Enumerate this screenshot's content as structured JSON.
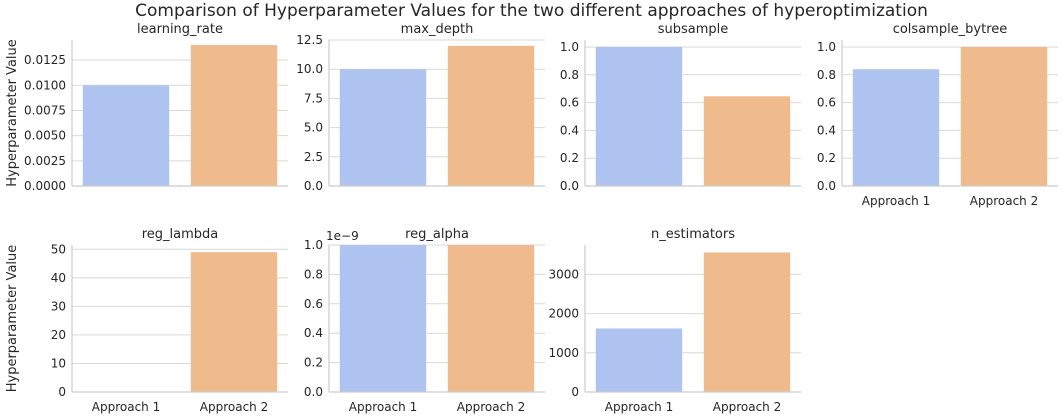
{
  "suptitle": "Comparison of Hyperparameter Values for the two different approaches of hyperoptimization",
  "colors": {
    "approach_1": "#aec3ef",
    "approach_2": "#f0bb8c",
    "grid": "#d9d9d9",
    "axis": "#cccccc",
    "text": "#262626"
  },
  "chart_data": [
    {
      "type": "bar",
      "title": "learning_rate",
      "ylabel": "Hyperparameter Value",
      "categories": [
        "Approach 1",
        "Approach 2"
      ],
      "values": [
        0.01,
        0.014
      ],
      "ylim": [
        0,
        0.0145
      ],
      "yticks": [
        0,
        0.0025,
        0.005,
        0.0075,
        0.01,
        0.0125
      ],
      "ytick_labels": [
        "0.0000",
        "0.0025",
        "0.0050",
        "0.0075",
        "0.0100",
        "0.0125"
      ],
      "show_xticks": false,
      "grid": true
    },
    {
      "type": "bar",
      "title": "max_depth",
      "ylabel": "",
      "categories": [
        "Approach 1",
        "Approach 2"
      ],
      "values": [
        10,
        12
      ],
      "ylim": [
        0,
        12.5
      ],
      "yticks": [
        0,
        2.5,
        5,
        7.5,
        10,
        12.5
      ],
      "ytick_labels": [
        "0.0",
        "2.5",
        "5.0",
        "7.5",
        "10.0",
        "12.5"
      ],
      "show_xticks": false,
      "grid": true
    },
    {
      "type": "bar",
      "title": "subsample",
      "ylabel": "",
      "categories": [
        "Approach 1",
        "Approach 2"
      ],
      "values": [
        1.0,
        0.645
      ],
      "ylim": [
        0,
        1.05
      ],
      "yticks": [
        0,
        0.2,
        0.4,
        0.6,
        0.8,
        1.0
      ],
      "ytick_labels": [
        "0.0",
        "0.2",
        "0.4",
        "0.6",
        "0.8",
        "1.0"
      ],
      "show_xticks": false,
      "grid": true
    },
    {
      "type": "bar",
      "title": "colsample_bytree",
      "ylabel": "",
      "categories": [
        "Approach 1",
        "Approach 2"
      ],
      "values": [
        0.84,
        1.0
      ],
      "ylim": [
        0,
        1.05
      ],
      "yticks": [
        0,
        0.2,
        0.4,
        0.6,
        0.8,
        1.0
      ],
      "ytick_labels": [
        "0.0",
        "0.2",
        "0.4",
        "0.6",
        "0.8",
        "1.0"
      ],
      "show_xticks": true,
      "grid": true
    },
    {
      "type": "bar",
      "title": "reg_lambda",
      "ylabel": "Hyperparameter Value",
      "categories": [
        "Approach 1",
        "Approach 2"
      ],
      "values": [
        0.0,
        49
      ],
      "ylim": [
        0,
        51.5
      ],
      "yticks": [
        0,
        10,
        20,
        30,
        40,
        50
      ],
      "ytick_labels": [
        "0",
        "10",
        "20",
        "30",
        "40",
        "50"
      ],
      "show_xticks": true,
      "grid": true
    },
    {
      "type": "bar",
      "title": "reg_alpha",
      "ylabel": "",
      "offset_label": "1e−9",
      "categories": [
        "Approach 1",
        "Approach 2"
      ],
      "values": [
        1.0,
        1.0
      ],
      "ylim": [
        0,
        1.0
      ],
      "yticks": [
        0,
        0.2,
        0.4,
        0.6,
        0.8,
        1.0
      ],
      "ytick_labels": [
        "0.0",
        "0.2",
        "0.4",
        "0.6",
        "0.8",
        "1.0"
      ],
      "show_xticks": true,
      "grid": true
    },
    {
      "type": "bar",
      "title": "n_estimators",
      "ylabel": "",
      "categories": [
        "Approach 1",
        "Approach 2"
      ],
      "values": [
        1620,
        3560
      ],
      "ylim": [
        0,
        3750
      ],
      "yticks": [
        0,
        1000,
        2000,
        3000
      ],
      "ytick_labels": [
        "0",
        "1000",
        "2000",
        "3000"
      ],
      "show_xticks": true,
      "grid": true
    }
  ]
}
